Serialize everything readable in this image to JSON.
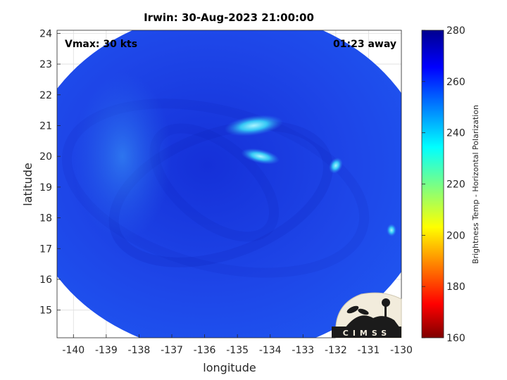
{
  "chart_data": {
    "type": "heatmap",
    "title": "Irwin: 30-Aug-2023 21:00:00",
    "xlabel": "longitude",
    "ylabel": "latitude",
    "xlim": [
      -140.5,
      -130
    ],
    "ylim": [
      14.1,
      24.1
    ],
    "x_ticks": [
      -140,
      -139,
      -138,
      -137,
      -136,
      -135,
      -134,
      -133,
      -132,
      -131,
      -130
    ],
    "y_ticks": [
      15,
      16,
      17,
      18,
      19,
      20,
      21,
      22,
      23,
      24
    ],
    "grid": true,
    "annotations": {
      "vmax": "Vmax: 30 kts",
      "time_offset": "01:23 away"
    },
    "colorbar": {
      "label": "Brightness Temp - Horizontal Polarization",
      "range": [
        160,
        280
      ],
      "ticks": [
        160,
        180,
        200,
        220,
        240,
        260,
        280
      ],
      "colormap": "jet",
      "colors": [
        "#7f0000",
        "#ff0000",
        "#ffff00",
        "#00ffff",
        "#0000ff",
        "#00008f"
      ]
    },
    "swath": {
      "center": [
        -135.3,
        19.15
      ],
      "radius_lon": 6.2,
      "radius_lat": 5.6,
      "background_value": 265
    },
    "features": [
      {
        "name": "cold-cloud-band-north",
        "lon": -134.5,
        "lat": 21.0,
        "value": 243
      },
      {
        "name": "cold-cloud-band-center",
        "lon": -134.3,
        "lat": 20.0,
        "value": 246
      },
      {
        "name": "cold-cloud-spot-east",
        "lon": -132.0,
        "lat": 19.7,
        "value": 250
      },
      {
        "name": "cold-spot-swath-edge",
        "lon": -130.3,
        "lat": 17.6,
        "value": 238
      }
    ]
  },
  "logo": {
    "text": "CIMSS"
  }
}
